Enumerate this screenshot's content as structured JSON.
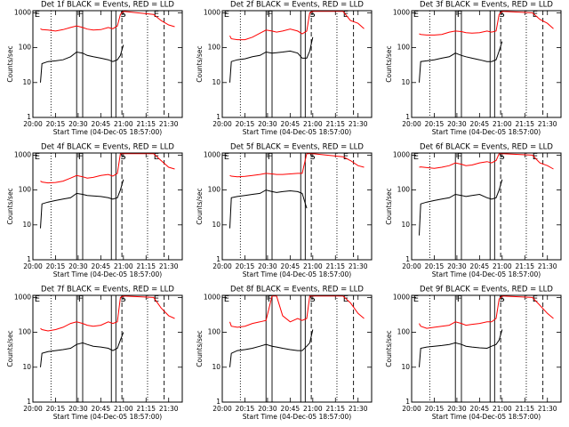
{
  "chart_data": [
    {
      "type": "line",
      "title": "Det 1f BLACK = Events, RED = LLD",
      "x_label": "Start Time (04-Dec-05 18:57:00)",
      "y_label": "Counts/sec",
      "log_scale": true,
      "x": [
        "20:05",
        "20:06",
        "20:10",
        "20:15",
        "20:20",
        "20:25",
        "20:29",
        "20:33",
        "20:36",
        "20:40",
        "20:45",
        "20:50",
        "20:53",
        "20:56",
        "20:58",
        "21:00",
        "21:20",
        "21:25",
        "21:30",
        "21:34"
      ],
      "series": [
        {
          "color": "#000000",
          "values": [
            10,
            35,
            40,
            42,
            45,
            55,
            75,
            70,
            60,
            55,
            50,
            45,
            40,
            45,
            60,
            120,
            null,
            null,
            null,
            null
          ]
        },
        {
          "color": "#ff0000",
          "values": [
            350,
            330,
            320,
            300,
            330,
            380,
            420,
            380,
            340,
            320,
            330,
            380,
            350,
            420,
            900,
            1100,
            900,
            600,
            450,
            400
          ]
        }
      ],
      "xlim": [
        "20:00",
        "21:39"
      ],
      "ylim": [
        1,
        1150
      ],
      "xticks": [
        "20:00",
        "20:15",
        "20:30",
        "20:45",
        "21:00",
        "21:15",
        "21:30"
      ],
      "yticks": [
        1,
        10,
        100,
        1000
      ]
    },
    {
      "type": "line",
      "title": "Det 2f BLACK = Events, RED = LLD",
      "x_label": "Start Time (04-Dec-05 18:57:00)",
      "y_label": "Counts/sec",
      "log_scale": true,
      "x": [
        "20:05",
        "20:06",
        "20:10",
        "20:15",
        "20:20",
        "20:25",
        "20:29",
        "20:33",
        "20:36",
        "20:40",
        "20:45",
        "20:50",
        "20:53",
        "20:56",
        "20:58",
        "21:00",
        "21:20",
        "21:25",
        "21:30",
        "21:34"
      ],
      "series": [
        {
          "color": "#000000",
          "values": [
            10,
            40,
            45,
            48,
            55,
            60,
            75,
            70,
            72,
            75,
            80,
            70,
            50,
            50,
            80,
            200,
            null,
            null,
            null,
            null
          ]
        },
        {
          "color": "#ff0000",
          "values": [
            220,
            180,
            170,
            170,
            200,
            260,
            320,
            300,
            280,
            300,
            340,
            300,
            250,
            300,
            1000,
            1100,
            1100,
            600,
            500,
            350
          ]
        }
      ],
      "xlim": [
        "20:00",
        "21:39"
      ],
      "ylim": [
        1,
        1150
      ],
      "xticks": [
        "20:00",
        "20:15",
        "20:30",
        "20:45",
        "21:00",
        "21:15",
        "21:30"
      ],
      "yticks": [
        1,
        10,
        100,
        1000
      ]
    },
    {
      "type": "line",
      "title": "Det 3f BLACK = Events, RED = LLD",
      "x_label": "Start Time (04-Dec-05 18:57:00)",
      "y_label": "Counts/sec",
      "log_scale": true,
      "x": [
        "20:05",
        "20:06",
        "20:10",
        "20:15",
        "20:20",
        "20:25",
        "20:29",
        "20:33",
        "20:36",
        "20:40",
        "20:45",
        "20:50",
        "20:53",
        "20:56",
        "20:58",
        "21:00",
        "21:20",
        "21:25",
        "21:30",
        "21:34"
      ],
      "series": [
        {
          "color": "#000000",
          "values": [
            10,
            40,
            42,
            45,
            50,
            55,
            70,
            60,
            55,
            50,
            45,
            40,
            40,
            45,
            80,
            150,
            null,
            null,
            null,
            null
          ]
        },
        {
          "color": "#ff0000",
          "values": [
            250,
            240,
            230,
            230,
            240,
            280,
            300,
            290,
            270,
            260,
            270,
            300,
            280,
            300,
            900,
            1100,
            1000,
            650,
            500,
            350
          ]
        }
      ],
      "xlim": [
        "20:00",
        "21:39"
      ],
      "ylim": [
        1,
        1150
      ],
      "xticks": [
        "20:00",
        "20:15",
        "20:30",
        "20:45",
        "21:00",
        "21:15",
        "21:30"
      ],
      "yticks": [
        1,
        10,
        100,
        1000
      ]
    },
    {
      "type": "line",
      "title": "Det 4f BLACK = Events, RED = LLD",
      "x_label": "Start Time (04-Dec-05 18:57:00)",
      "y_label": "Counts/sec",
      "log_scale": true,
      "x": [
        "20:05",
        "20:06",
        "20:10",
        "20:15",
        "20:20",
        "20:25",
        "20:29",
        "20:33",
        "20:36",
        "20:40",
        "20:45",
        "20:50",
        "20:53",
        "20:56",
        "20:58",
        "21:00",
        "21:20",
        "21:25",
        "21:30",
        "21:34"
      ],
      "series": [
        {
          "color": "#000000",
          "values": [
            8,
            40,
            45,
            50,
            55,
            60,
            80,
            75,
            70,
            68,
            65,
            60,
            55,
            60,
            100,
            200,
            null,
            null,
            null,
            null
          ]
        },
        {
          "color": "#ff0000",
          "values": [
            180,
            170,
            160,
            165,
            180,
            220,
            260,
            240,
            220,
            230,
            260,
            280,
            250,
            300,
            1100,
            1100,
            1100,
            700,
            450,
            400
          ]
        }
      ],
      "xlim": [
        "20:00",
        "21:39"
      ],
      "ylim": [
        1,
        1150
      ],
      "xticks": [
        "20:00",
        "20:15",
        "20:30",
        "20:45",
        "21:00",
        "21:15",
        "21:30"
      ],
      "yticks": [
        1,
        10,
        100,
        1000
      ]
    },
    {
      "type": "line",
      "title": "Det 5f BLACK = Events, RED = LLD",
      "x_label": "Start Time (04-Dec-05 18:57:00)",
      "y_label": "Counts/sec",
      "log_scale": true,
      "x": [
        "20:05",
        "20:06",
        "20:10",
        "20:15",
        "20:20",
        "20:25",
        "20:29",
        "20:33",
        "20:36",
        "20:40",
        "20:45",
        "20:50",
        "20:53",
        "20:56",
        "20:58",
        "21:00",
        "21:20",
        "21:25",
        "21:30",
        "21:34"
      ],
      "series": [
        {
          "color": "#000000",
          "values": [
            8,
            60,
            65,
            70,
            75,
            80,
            100,
            90,
            85,
            90,
            95,
            90,
            80,
            30,
            null,
            null,
            null,
            null,
            null,
            null
          ]
        },
        {
          "color": "#ff0000",
          "values": [
            260,
            250,
            240,
            245,
            260,
            280,
            300,
            290,
            280,
            280,
            290,
            300,
            300,
            1100,
            1100,
            1100,
            900,
            700,
            500,
            450
          ]
        }
      ],
      "xlim": [
        "20:00",
        "21:39"
      ],
      "ylim": [
        1,
        1150
      ],
      "xticks": [
        "20:00",
        "20:15",
        "20:30",
        "20:45",
        "21:00",
        "21:15",
        "21:30"
      ],
      "yticks": [
        1,
        10,
        100,
        1000
      ]
    },
    {
      "type": "line",
      "title": "Det 6f BLACK = Events, RED = LLD",
      "x_label": "Start Time (04-Dec-05 18:57:00)",
      "y_label": "Counts/sec",
      "log_scale": true,
      "x": [
        "20:05",
        "20:06",
        "20:10",
        "20:15",
        "20:20",
        "20:25",
        "20:29",
        "20:33",
        "20:36",
        "20:40",
        "20:45",
        "20:50",
        "20:53",
        "20:56",
        "20:58",
        "21:00",
        "21:20",
        "21:25",
        "21:30",
        "21:34"
      ],
      "series": [
        {
          "color": "#000000",
          "values": [
            5,
            40,
            45,
            50,
            55,
            60,
            75,
            70,
            65,
            70,
            75,
            60,
            55,
            60,
            100,
            200,
            null,
            null,
            null,
            null
          ]
        },
        {
          "color": "#ff0000",
          "values": [
            450,
            460,
            440,
            420,
            450,
            500,
            600,
            550,
            500,
            520,
            600,
            650,
            600,
            700,
            1100,
            1100,
            1000,
            600,
            500,
            400
          ]
        }
      ],
      "xlim": [
        "20:00",
        "21:39"
      ],
      "ylim": [
        1,
        1150
      ],
      "xticks": [
        "20:00",
        "20:15",
        "20:30",
        "20:45",
        "21:00",
        "21:15",
        "21:30"
      ],
      "yticks": [
        1,
        10,
        100,
        1000
      ]
    },
    {
      "type": "line",
      "title": "Det 7f BLACK = Events, RED = LLD",
      "x_label": "Start Time (04-Dec-05 18:57:00)",
      "y_label": "Counts/sec",
      "log_scale": true,
      "x": [
        "20:05",
        "20:06",
        "20:10",
        "20:15",
        "20:20",
        "20:25",
        "20:29",
        "20:33",
        "20:36",
        "20:40",
        "20:45",
        "20:50",
        "20:53",
        "20:56",
        "20:58",
        "21:00",
        "21:20",
        "21:25",
        "21:30",
        "21:34"
      ],
      "series": [
        {
          "color": "#000000",
          "values": [
            10,
            25,
            28,
            30,
            32,
            35,
            45,
            50,
            45,
            40,
            38,
            35,
            30,
            35,
            60,
            100,
            null,
            null,
            null,
            null
          ]
        },
        {
          "color": "#ff0000",
          "values": [
            130,
            120,
            110,
            120,
            140,
            180,
            200,
            180,
            160,
            150,
            160,
            200,
            180,
            200,
            1000,
            1100,
            1000,
            500,
            300,
            250
          ]
        }
      ],
      "xlim": [
        "20:00",
        "21:39"
      ],
      "ylim": [
        1,
        1150
      ],
      "xticks": [
        "20:00",
        "20:15",
        "20:30",
        "20:45",
        "21:00",
        "21:15",
        "21:30"
      ],
      "yticks": [
        1,
        10,
        100,
        1000
      ]
    },
    {
      "type": "line",
      "title": "Det 8f BLACK = Events, RED = LLD",
      "x_label": "Start Time (04-Dec-05 18:57:00)",
      "y_label": "Counts/sec",
      "log_scale": true,
      "x": [
        "20:05",
        "20:06",
        "20:10",
        "20:15",
        "20:20",
        "20:25",
        "20:29",
        "20:33",
        "20:36",
        "20:40",
        "20:45",
        "20:50",
        "20:53",
        "20:56",
        "20:58",
        "21:00",
        "21:20",
        "21:25",
        "21:30",
        "21:34"
      ],
      "series": [
        {
          "color": "#000000",
          "values": [
            10,
            25,
            30,
            32,
            35,
            40,
            45,
            40,
            38,
            35,
            32,
            30,
            30,
            40,
            50,
            120,
            null,
            null,
            null,
            null
          ]
        },
        {
          "color": "#ff0000",
          "values": [
            200,
            150,
            140,
            150,
            180,
            200,
            220,
            1100,
            1100,
            300,
            200,
            250,
            220,
            250,
            1100,
            1100,
            1100,
            700,
            350,
            250
          ]
        }
      ],
      "xlim": [
        "20:00",
        "21:39"
      ],
      "ylim": [
        1,
        1150
      ],
      "xticks": [
        "20:00",
        "20:15",
        "20:30",
        "20:45",
        "21:00",
        "21:15",
        "21:30"
      ],
      "yticks": [
        1,
        10,
        100,
        1000
      ]
    },
    {
      "type": "line",
      "title": "Det 9f BLACK = Events, RED = LLD",
      "x_label": "Start Time (04-Dec-05 18:57:00)",
      "y_label": "Counts/sec",
      "log_scale": true,
      "x": [
        "20:05",
        "20:06",
        "20:10",
        "20:15",
        "20:20",
        "20:25",
        "20:29",
        "20:33",
        "20:36",
        "20:40",
        "20:45",
        "20:50",
        "20:53",
        "20:56",
        "20:58",
        "21:00",
        "21:20",
        "21:25",
        "21:30",
        "21:34"
      ],
      "series": [
        {
          "color": "#000000",
          "values": [
            10,
            35,
            38,
            40,
            42,
            45,
            50,
            45,
            40,
            38,
            36,
            35,
            40,
            45,
            60,
            120,
            null,
            null,
            null,
            null
          ]
        },
        {
          "color": "#ff0000",
          "values": [
            180,
            150,
            130,
            140,
            150,
            160,
            200,
            180,
            160,
            170,
            180,
            200,
            200,
            250,
            900,
            1100,
            1000,
            600,
            350,
            250
          ]
        }
      ],
      "xlim": [
        "20:00",
        "21:39"
      ],
      "ylim": [
        1,
        1150
      ],
      "xticks": [
        "20:00",
        "20:15",
        "20:30",
        "20:45",
        "21:00",
        "21:15",
        "21:30"
      ],
      "yticks": [
        1,
        10,
        100,
        1000
      ]
    }
  ],
  "events": {
    "lines": [
      {
        "x": "20:12",
        "style": "dotted"
      },
      {
        "x": "20:29",
        "style": "solid"
      },
      {
        "x": "20:33",
        "style": "solid"
      },
      {
        "x": "20:52",
        "style": "solid"
      },
      {
        "x": "20:55",
        "style": "solid"
      },
      {
        "x": "20:59",
        "style": "dashed"
      },
      {
        "x": "21:16",
        "style": "dotted"
      },
      {
        "x": "21:27",
        "style": "dashed"
      }
    ],
    "labels": [
      {
        "text": "E",
        "x": "20:01"
      },
      {
        "text": "F",
        "x": "20:30"
      },
      {
        "text": "S",
        "x": "20:58"
      },
      {
        "text": "E",
        "x": "21:20"
      }
    ]
  }
}
